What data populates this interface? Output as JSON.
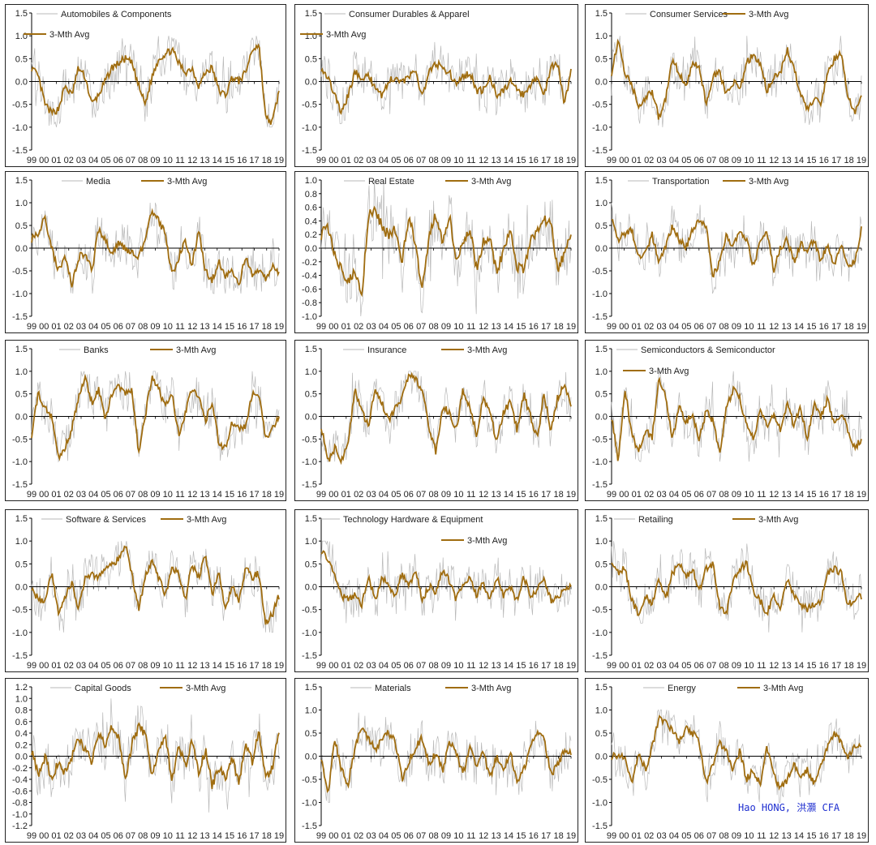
{
  "x_tick_labels": [
    "99",
    "00",
    "01",
    "02",
    "03",
    "04",
    "05",
    "06",
    "07",
    "08",
    "09",
    "10",
    "11",
    "12",
    "13",
    "14",
    "15",
    "16",
    "17",
    "18",
    "19"
  ],
  "avg_label": "3-Mth Avg",
  "colors": {
    "monthly": "#b9b9b9",
    "avg": "#a06d10",
    "zero": "#000000",
    "border": "#222222",
    "credit": "#1f2fd0"
  },
  "credit": "Hao HONG, 洪灝 CFA",
  "chart_data": [
    {
      "type": "line",
      "title": "Automobiles & Components",
      "ylim": [
        -1.5,
        1.5
      ],
      "yticks": [
        "1.5",
        "1.0",
        "0.5",
        "0.0",
        "-0.5",
        "-1.0",
        "-1.5"
      ],
      "series": [
        {
          "name": "Automobiles & Components"
        },
        {
          "name": "3-Mth Avg"
        }
      ],
      "avg_anchors": [
        0.3,
        0.1,
        -0.5,
        -0.7,
        -0.6,
        -0.1,
        -0.3,
        0.3,
        0.1,
        -0.5,
        -0.3,
        0.0,
        0.3,
        0.4,
        0.5,
        0.4,
        -0.1,
        -0.5,
        0.1,
        0.5,
        0.6,
        0.7,
        0.4,
        0.2,
        0.3,
        -0.1,
        0.2,
        0.3,
        -0.2,
        -0.3,
        0.1,
        0.0,
        0.2,
        0.7,
        0.8,
        -0.8,
        -0.9,
        -0.2
      ]
    },
    {
      "type": "line",
      "title": "Consumer Durables & Apparel",
      "ylim": [
        -1.5,
        1.5
      ],
      "yticks": [
        "1.5",
        "1.0",
        "0.5",
        "0.0",
        "-0.5",
        "-1.0",
        "-1.5"
      ],
      "series": [
        {
          "name": "Consumer Durables & Apparel"
        },
        {
          "name": "3-Mth Avg"
        }
      ],
      "avg_anchors": [
        0.3,
        0.1,
        -0.3,
        -0.7,
        -0.3,
        0.2,
        0.1,
        0.1,
        -0.1,
        -0.3,
        0.0,
        0.1,
        0.0,
        0.1,
        0.2,
        -0.3,
        0.2,
        0.4,
        0.3,
        0.2,
        -0.1,
        0.1,
        0.2,
        -0.2,
        -0.2,
        0.1,
        -0.3,
        -0.2,
        0.0,
        -0.2,
        -0.3,
        -0.1,
        0.1,
        -0.3,
        0.3,
        0.4,
        -0.5,
        0.2
      ]
    },
    {
      "type": "line",
      "title": "Consumer Services",
      "ylim": [
        -1.5,
        1.5
      ],
      "yticks": [
        "1.5",
        "1.0",
        "0.5",
        "0.0",
        "-0.5",
        "-1.0",
        "-1.5"
      ],
      "series": [
        {
          "name": "Consumer Services"
        },
        {
          "name": "3-Mth Avg"
        }
      ],
      "avg_anchors": [
        0.2,
        0.9,
        0.2,
        -0.1,
        -0.5,
        -0.4,
        -0.2,
        -0.8,
        -0.4,
        0.5,
        0.2,
        -0.1,
        0.4,
        0.3,
        -0.5,
        0.1,
        0.2,
        -0.3,
        0.0,
        -0.2,
        0.4,
        0.6,
        0.4,
        -0.2,
        0.1,
        0.2,
        0.7,
        0.3,
        -0.3,
        -0.6,
        -0.4,
        -0.5,
        0.2,
        0.5,
        0.6,
        -0.3,
        -0.7,
        -0.3
      ]
    },
    {
      "type": "line",
      "title": "Media",
      "ylim": [
        -1.5,
        1.5
      ],
      "yticks": [
        "1.5",
        "1.0",
        "0.5",
        "0.0",
        "-0.5",
        "-1.0",
        "-1.5"
      ],
      "series": [
        {
          "name": "Media"
        },
        {
          "name": "3-Mth Avg"
        }
      ],
      "avg_anchors": [
        0.2,
        0.3,
        0.7,
        0.0,
        -0.5,
        -0.2,
        -0.8,
        -0.2,
        -0.1,
        -0.5,
        0.4,
        0.2,
        -0.1,
        0.1,
        0.0,
        -0.1,
        -0.2,
        0.2,
        0.8,
        0.6,
        0.3,
        -0.6,
        -0.2,
        0.2,
        -0.4,
        0.4,
        -0.5,
        -0.7,
        -0.3,
        -0.6,
        -0.5,
        -0.8,
        -0.2,
        -0.6,
        -0.5,
        -0.7,
        -0.4,
        -0.6
      ]
    },
    {
      "type": "line",
      "title": "Real Estate",
      "ylim": [
        -1.0,
        1.0
      ],
      "yticks": [
        "1.0",
        "0.8",
        "0.6",
        "0.4",
        "0.2",
        "0.0",
        "-0.2",
        "-0.4",
        "-0.6",
        "-0.8",
        "-1.0"
      ],
      "series": [
        {
          "name": "Real Estate"
        },
        {
          "name": "3-Mth Avg"
        }
      ],
      "avg_anchors": [
        0.2,
        0.3,
        -0.1,
        -0.3,
        -0.5,
        -0.3,
        -0.7,
        0.5,
        0.6,
        0.3,
        0.2,
        0.3,
        -0.2,
        0.5,
        0.0,
        -0.6,
        0.2,
        0.5,
        0.1,
        0.5,
        -0.2,
        0.1,
        0.3,
        -0.3,
        0.1,
        0.2,
        -0.4,
        0.0,
        0.3,
        -0.3,
        -0.3,
        0.1,
        0.3,
        0.4,
        0.4,
        -0.3,
        -0.1,
        0.2
      ]
    },
    {
      "type": "line",
      "title": "Transportation",
      "ylim": [
        -1.5,
        1.5
      ],
      "yticks": [
        "1.5",
        "1.0",
        "0.5",
        "0.0",
        "-0.5",
        "-1.0",
        "-1.5"
      ],
      "series": [
        {
          "name": "Transportation"
        },
        {
          "name": "3-Mth Avg"
        }
      ],
      "avg_anchors": [
        0.7,
        0.2,
        0.3,
        0.4,
        -0.2,
        -0.1,
        0.3,
        -0.3,
        0.0,
        0.5,
        0.2,
        0.0,
        0.4,
        0.6,
        0.5,
        -0.6,
        -0.3,
        0.3,
        0.0,
        0.4,
        0.2,
        -0.4,
        0.1,
        0.4,
        -0.5,
        0.0,
        0.2,
        -0.3,
        0.1,
        -0.1,
        0.2,
        -0.3,
        0.1,
        -0.4,
        0.1,
        -0.4,
        -0.3,
        0.4
      ]
    },
    {
      "type": "line",
      "title": "Banks",
      "ylim": [
        -1.5,
        1.5
      ],
      "yticks": [
        "1.5",
        "1.0",
        "0.5",
        "0.0",
        "-0.5",
        "-1.0",
        "-1.5"
      ],
      "series": [
        {
          "name": "Banks"
        },
        {
          "name": "3-Mth Avg"
        }
      ],
      "avg_anchors": [
        -0.4,
        0.5,
        0.2,
        0.0,
        -0.9,
        -0.7,
        -0.3,
        0.4,
        0.9,
        0.3,
        0.6,
        -0.1,
        0.5,
        0.7,
        0.5,
        0.6,
        -0.8,
        0.0,
        0.9,
        0.6,
        0.2,
        0.5,
        -0.4,
        0.1,
        0.6,
        0.4,
        -0.1,
        0.3,
        -0.6,
        -0.7,
        -0.1,
        -0.3,
        -0.2,
        0.5,
        0.5,
        -0.5,
        -0.3,
        0.0
      ]
    },
    {
      "type": "line",
      "title": "Insurance",
      "ylim": [
        -1.5,
        1.5
      ],
      "yticks": [
        "1.5",
        "1.0",
        "0.5",
        "0.0",
        "-0.5",
        "-1.0",
        "-1.5"
      ],
      "series": [
        {
          "name": "Insurance"
        },
        {
          "name": "3-Mth Avg"
        }
      ],
      "avg_anchors": [
        -0.2,
        -1.0,
        -0.7,
        -1.0,
        -0.6,
        0.6,
        0.1,
        -0.2,
        0.6,
        0.3,
        -0.1,
        0.2,
        0.4,
        0.9,
        0.8,
        0.6,
        -0.3,
        -0.8,
        0.2,
        0.1,
        -0.3,
        0.6,
        0.2,
        -0.4,
        0.4,
        0.1,
        -0.6,
        0.1,
        0.3,
        -0.3,
        0.5,
        0.0,
        -0.5,
        0.5,
        -0.3,
        0.4,
        0.7,
        0.3
      ]
    },
    {
      "type": "line",
      "title": "Semiconductors & Semiconductor",
      "ylim": [
        -1.5,
        1.5
      ],
      "yticks": [
        "1.5",
        "1.0",
        "0.5",
        "0.0",
        "-0.5",
        "-1.0",
        "-1.5"
      ],
      "series": [
        {
          "name": "Semiconductors & Semiconductor"
        },
        {
          "name": "3-Mth Avg"
        }
      ],
      "avg_anchors": [
        0.0,
        -1.0,
        0.6,
        -0.4,
        -0.8,
        -0.3,
        -0.5,
        0.9,
        0.4,
        -0.5,
        0.2,
        -0.1,
        0.0,
        -0.5,
        0.1,
        -0.1,
        -0.8,
        0.2,
        0.6,
        0.4,
        -0.2,
        -0.5,
        0.1,
        -0.2,
        0.0,
        -0.3,
        0.3,
        -0.2,
        0.2,
        -0.5,
        0.3,
        0.0,
        0.4,
        -0.2,
        0.1,
        -0.3,
        -0.7,
        -0.5
      ]
    },
    {
      "type": "line",
      "title": "Software & Services",
      "ylim": [
        -1.5,
        1.5
      ],
      "yticks": [
        "1.5",
        "1.0",
        "0.5",
        "0.0",
        "-0.5",
        "-1.0",
        "-1.5"
      ],
      "series": [
        {
          "name": "Software & Services"
        },
        {
          "name": "3-Mth Avg"
        }
      ],
      "avg_anchors": [
        0.0,
        -0.3,
        -0.3,
        0.3,
        -0.6,
        -0.2,
        0.1,
        -0.5,
        0.2,
        0.3,
        0.2,
        0.4,
        0.5,
        0.6,
        0.9,
        0.3,
        -0.5,
        0.2,
        0.6,
        0.2,
        -0.2,
        0.4,
        0.3,
        -0.3,
        0.5,
        0.2,
        0.7,
        -0.2,
        0.3,
        -0.5,
        0.0,
        -0.3,
        0.4,
        0.2,
        0.3,
        -0.8,
        -0.6,
        -0.2
      ]
    },
    {
      "type": "line",
      "title": "Technology Hardware & Equipment",
      "ylim": [
        -1.5,
        1.5
      ],
      "yticks": [
        "1.5",
        "1.0",
        "0.5",
        "0.0",
        "-0.5",
        "-1.0",
        "-1.5"
      ],
      "series": [
        {
          "name": "Technology Hardware & Equipment"
        },
        {
          "name": "3-Mth Avg"
        }
      ],
      "avg_anchors": [
        0.8,
        0.6,
        0.2,
        -0.2,
        -0.3,
        -0.2,
        -0.4,
        0.2,
        -0.3,
        0.2,
        0.0,
        -0.2,
        0.3,
        0.0,
        0.4,
        -0.3,
        0.0,
        -0.1,
        0.4,
        0.1,
        -0.3,
        0.1,
        0.2,
        -0.2,
        0.1,
        -0.3,
        0.2,
        -0.2,
        0.0,
        -0.3,
        0.2,
        -0.2,
        -0.1,
        0.2,
        -0.3,
        -0.2,
        -0.1,
        0.0
      ]
    },
    {
      "type": "line",
      "title": "Retailing",
      "ylim": [
        -1.5,
        1.5
      ],
      "yticks": [
        "1.5",
        "1.0",
        "0.5",
        "0.0",
        "-0.5",
        "-1.0",
        "-1.5"
      ],
      "series": [
        {
          "name": "Retailing"
        },
        {
          "name": "3-Mth Avg"
        }
      ],
      "avg_anchors": [
        0.6,
        0.3,
        0.4,
        -0.3,
        -0.6,
        -0.2,
        -0.4,
        0.2,
        -0.3,
        0.3,
        0.5,
        0.2,
        0.4,
        -0.1,
        0.4,
        0.5,
        -0.4,
        -0.6,
        0.1,
        0.4,
        0.5,
        -0.1,
        -0.3,
        -0.6,
        -0.2,
        -0.5,
        0.2,
        -0.2,
        -0.4,
        -0.5,
        -0.4,
        -0.3,
        0.3,
        0.4,
        0.3,
        -0.4,
        -0.3,
        -0.2
      ]
    },
    {
      "type": "line",
      "title": "Capital Goods",
      "ylim": [
        -1.2,
        1.2
      ],
      "yticks": [
        "1.2",
        "1.0",
        "0.8",
        "0.6",
        "0.4",
        "0.2",
        "0.0",
        "-0.2",
        "-0.4",
        "-0.6",
        "-0.8",
        "-1.0",
        "-1.2"
      ],
      "series": [
        {
          "name": "Capital Goods"
        },
        {
          "name": "3-Mth Avg"
        }
      ],
      "avg_anchors": [
        0.1,
        -0.3,
        0.0,
        -0.4,
        -0.1,
        -0.3,
        0.0,
        0.3,
        0.1,
        -0.1,
        0.4,
        0.2,
        0.5,
        0.3,
        -0.4,
        0.2,
        0.5,
        0.4,
        -0.3,
        0.1,
        0.3,
        -0.4,
        0.2,
        -0.2,
        0.3,
        -0.3,
        0.1,
        -0.5,
        -0.2,
        -0.4,
        0.0,
        -0.5,
        0.2,
        -0.1,
        0.4,
        -0.4,
        -0.2,
        0.4
      ]
    },
    {
      "type": "line",
      "title": "Materials",
      "ylim": [
        -1.5,
        1.5
      ],
      "yticks": [
        "1.5",
        "1.0",
        "0.5",
        "0.0",
        "-0.5",
        "-1.0",
        "-1.5"
      ],
      "series": [
        {
          "name": "Materials"
        },
        {
          "name": "3-Mth Avg"
        }
      ],
      "avg_anchors": [
        0.0,
        -0.9,
        0.4,
        -0.3,
        -0.6,
        0.2,
        0.6,
        0.4,
        0.1,
        0.4,
        0.5,
        0.3,
        -0.5,
        -0.1,
        0.2,
        0.4,
        -0.2,
        0.1,
        -0.3,
        0.3,
        0.1,
        -0.4,
        0.2,
        -0.2,
        0.1,
        -0.5,
        0.0,
        -0.3,
        0.1,
        -0.6,
        -0.3,
        0.2,
        0.5,
        0.4,
        -0.4,
        -0.2,
        0.1,
        0.1
      ]
    },
    {
      "type": "line",
      "title": "Energy",
      "ylim": [
        -1.5,
        1.5
      ],
      "yticks": [
        "1.5",
        "1.0",
        "0.5",
        "0.0",
        "-0.5",
        "-1.0",
        "-1.5"
      ],
      "series": [
        {
          "name": "Energy"
        },
        {
          "name": "3-Mth Avg"
        }
      ],
      "avg_anchors": [
        0.0,
        0.0,
        0.0,
        -0.6,
        0.1,
        -0.3,
        0.2,
        0.8,
        0.7,
        0.6,
        0.3,
        0.6,
        0.5,
        0.3,
        -0.6,
        -0.2,
        0.3,
        0.1,
        -0.3,
        0.1,
        -0.5,
        -0.3,
        -0.6,
        0.2,
        -0.4,
        -0.7,
        -0.5,
        -0.2,
        -0.4,
        -0.3,
        -0.6,
        -0.2,
        0.2,
        0.5,
        0.3,
        0.0,
        0.2,
        0.2
      ]
    }
  ]
}
